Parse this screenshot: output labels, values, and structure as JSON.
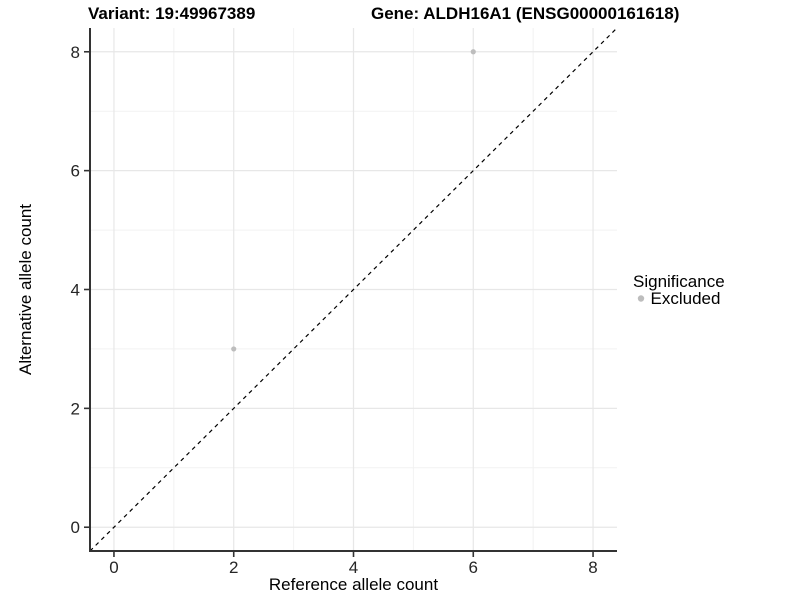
{
  "chart_data": {
    "type": "scatter",
    "title_left": "Variant: 19:49967389",
    "title_right": "Gene: ALDH16A1 (ENSG00000161618)",
    "xlabel": "Reference allele count",
    "ylabel": "Alternative allele count",
    "xlim": [
      -0.4,
      8.4
    ],
    "ylim": [
      -0.4,
      8.4
    ],
    "xticks": [
      0,
      2,
      4,
      6,
      8
    ],
    "yticks": [
      0,
      2,
      4,
      6,
      8
    ],
    "xminor": [
      1,
      3,
      5,
      7
    ],
    "yminor": [
      1,
      3,
      5,
      7
    ],
    "grid": "major and minor gridlines on white background",
    "identity_line": {
      "type": "y=x",
      "style": "dashed",
      "color": "#000000"
    },
    "series": [
      {
        "name": "Excluded",
        "color": "#bdbdbd",
        "marker": "circle",
        "points": [
          {
            "x": 2,
            "y": 3
          },
          {
            "x": 6,
            "y": 8
          }
        ]
      }
    ],
    "legend": {
      "title": "Significance",
      "position": "right",
      "entries": [
        {
          "label": "Excluded",
          "color": "#bdbdbd",
          "marker": "circle"
        }
      ]
    }
  },
  "style": {
    "background": "#ffffff",
    "axis_line_color": "#333333",
    "tick_color": "#333333",
    "grid_major_color": "#e7e7e7",
    "grid_minor_color": "#f2f2f2",
    "point_radius": 2.6,
    "title_color": "#000000",
    "tick_label_color": "#262626"
  }
}
